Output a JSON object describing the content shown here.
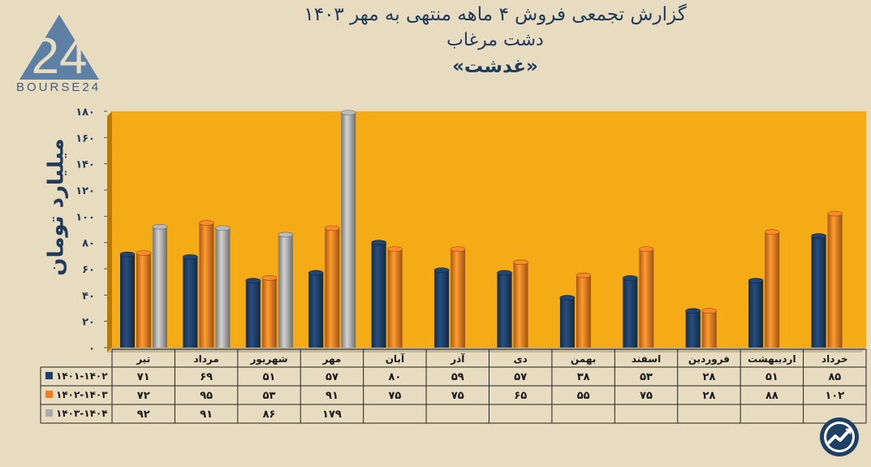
{
  "title": {
    "line1": "گزارش تجمعی فروش ۴ ماهه منتهی به مهر ۱۴۰۳",
    "line2": "دشت مرغاب",
    "line3": "«غدشت»"
  },
  "logo": {
    "text": "BOURSE24",
    "mark": "24",
    "icon": "bourse24-logo-icon"
  },
  "badge": {
    "icon": "trend-chart-badge-icon"
  },
  "colors": {
    "background": "#e8dcc0",
    "plot_bg": "#f5ab16",
    "series": [
      "#1e3f66",
      "#f07d24",
      "#a9a9a9"
    ]
  },
  "chart_data": {
    "type": "bar",
    "ylabel": "میلیارد تومان",
    "ylim": [
      0,
      180
    ],
    "yticks": [
      "۰",
      "۲۰",
      "۴۰",
      "۶۰",
      "۸۰",
      "۱۰۰",
      "۱۲۰",
      "۱۴۰",
      "۱۶۰",
      "۱۸۰"
    ],
    "grid": false,
    "categories": [
      "تیر",
      "مرداد",
      "شهریور",
      "مهر",
      "آبان",
      "آذر",
      "دی",
      "بهمن",
      "اسفند",
      "فروردین",
      "اردیبهشت",
      "خرداد"
    ],
    "series": [
      {
        "name": "۱۴۰۱-۱۴۰۲",
        "values": [
          71,
          69,
          51,
          57,
          80,
          59,
          57,
          38,
          53,
          28,
          51,
          85
        ],
        "labels": [
          "۷۱",
          "۶۹",
          "۵۱",
          "۵۷",
          "۸۰",
          "۵۹",
          "۵۷",
          "۳۸",
          "۵۳",
          "۲۸",
          "۵۱",
          "۸۵"
        ]
      },
      {
        "name": "۱۴۰۲-۱۴۰۳",
        "values": [
          72,
          95,
          53,
          91,
          75,
          75,
          65,
          55,
          75,
          28,
          88,
          102
        ],
        "labels": [
          "۷۲",
          "۹۵",
          "۵۳",
          "۹۱",
          "۷۵",
          "۷۵",
          "۶۵",
          "۵۵",
          "۷۵",
          "۲۸",
          "۸۸",
          "۱۰۲"
        ]
      },
      {
        "name": "۱۴۰۳-۱۴۰۴",
        "values": [
          92,
          91,
          86,
          179,
          null,
          null,
          null,
          null,
          null,
          null,
          null,
          null
        ],
        "labels": [
          "۹۲",
          "۹۱",
          "۸۶",
          "۱۷۹",
          "",
          "",
          "",
          "",
          "",
          "",
          "",
          ""
        ]
      }
    ]
  }
}
